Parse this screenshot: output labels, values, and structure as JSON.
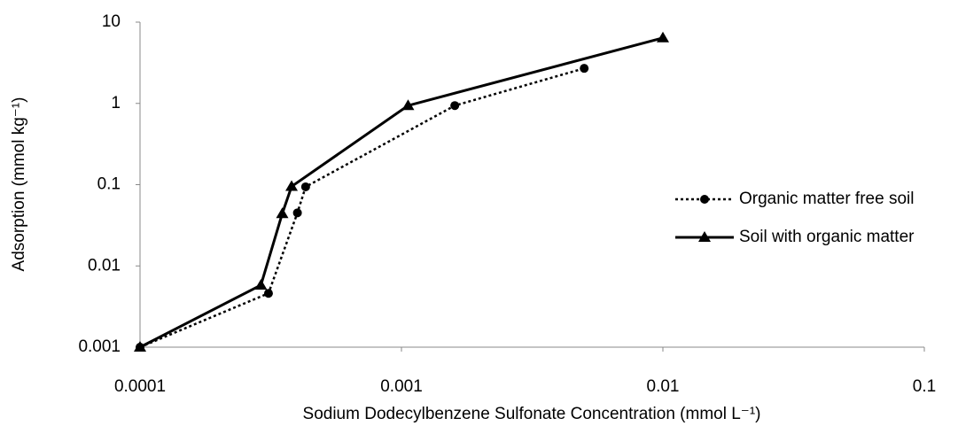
{
  "chart_data": {
    "type": "line",
    "x_label": "Sodium Dodecylbenzene Sulfonate Concentration (mmol L⁻¹)",
    "y_label": "Adsorption (mmol kg⁻¹)",
    "x_log": true,
    "y_log": true,
    "grid": false,
    "legend": "right",
    "xlim": [
      0.0001,
      0.1
    ],
    "xticks": [
      0.0001,
      0.001,
      0.01,
      0.1
    ],
    "ylim": [
      0.001,
      10
    ],
    "yticks": [
      0.001,
      0.01,
      0.1,
      1,
      10
    ],
    "series": [
      {
        "name": "Organic matter free soil",
        "color": "#000000",
        "style": "dotted",
        "marker": "circle",
        "x": [
          0.0001,
          0.00031,
          0.0004,
          0.00043,
          0.0016,
          0.005
        ],
        "values": [
          0.001,
          0.0046,
          0.045,
          0.094,
          0.94,
          2.7
        ]
      },
      {
        "name": "Soil with organic matter",
        "color": "#000000",
        "style": "solid",
        "marker": "triangle",
        "x": [
          0.0001,
          0.00029,
          0.00035,
          0.00038,
          0.00106,
          0.01
        ],
        "values": [
          0.001,
          0.0058,
          0.044,
          0.095,
          0.94,
          6.4
        ]
      }
    ]
  }
}
